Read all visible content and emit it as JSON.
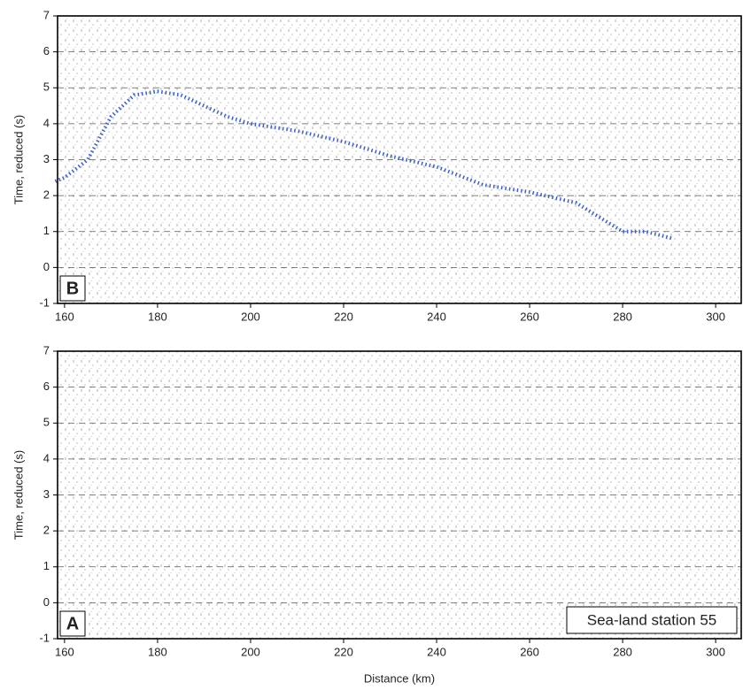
{
  "chart_data": [
    {
      "type": "line",
      "panel_label": "B",
      "ylabel": "Time, reduced (s)",
      "xlim": [
        158.5,
        305.5
      ],
      "ylim": [
        -1,
        7
      ],
      "xticks": [
        160,
        180,
        200,
        220,
        240,
        260,
        280,
        300
      ],
      "yticks": [
        -1,
        0,
        1,
        2,
        3,
        4,
        5,
        6,
        7
      ],
      "grid": "y",
      "series": [
        {
          "color": "#3a5fd0",
          "x": [
            158,
            160,
            165,
            170,
            175,
            180,
            185,
            190,
            195,
            200,
            210,
            220,
            230,
            240,
            250,
            260,
            270,
            280,
            285,
            291
          ],
          "values": [
            2.4,
            2.5,
            3.0,
            4.2,
            4.8,
            4.9,
            4.8,
            4.5,
            4.2,
            4.0,
            3.8,
            3.5,
            3.1,
            2.8,
            2.3,
            2.1,
            1.8,
            1.0,
            1.0,
            0.8
          ]
        }
      ]
    },
    {
      "type": "line",
      "panel_label": "A",
      "ylabel": "Time, reduced (s)",
      "xlabel": "Distance (km)",
      "annotation": "Sea-land station 55",
      "xlim": [
        158.5,
        305.5
      ],
      "ylim": [
        -1,
        7
      ],
      "xticks": [
        160,
        180,
        200,
        220,
        240,
        260,
        280,
        300
      ],
      "yticks": [
        -1,
        0,
        1,
        2,
        3,
        4,
        5,
        6,
        7
      ],
      "grid": "y",
      "series": []
    }
  ]
}
